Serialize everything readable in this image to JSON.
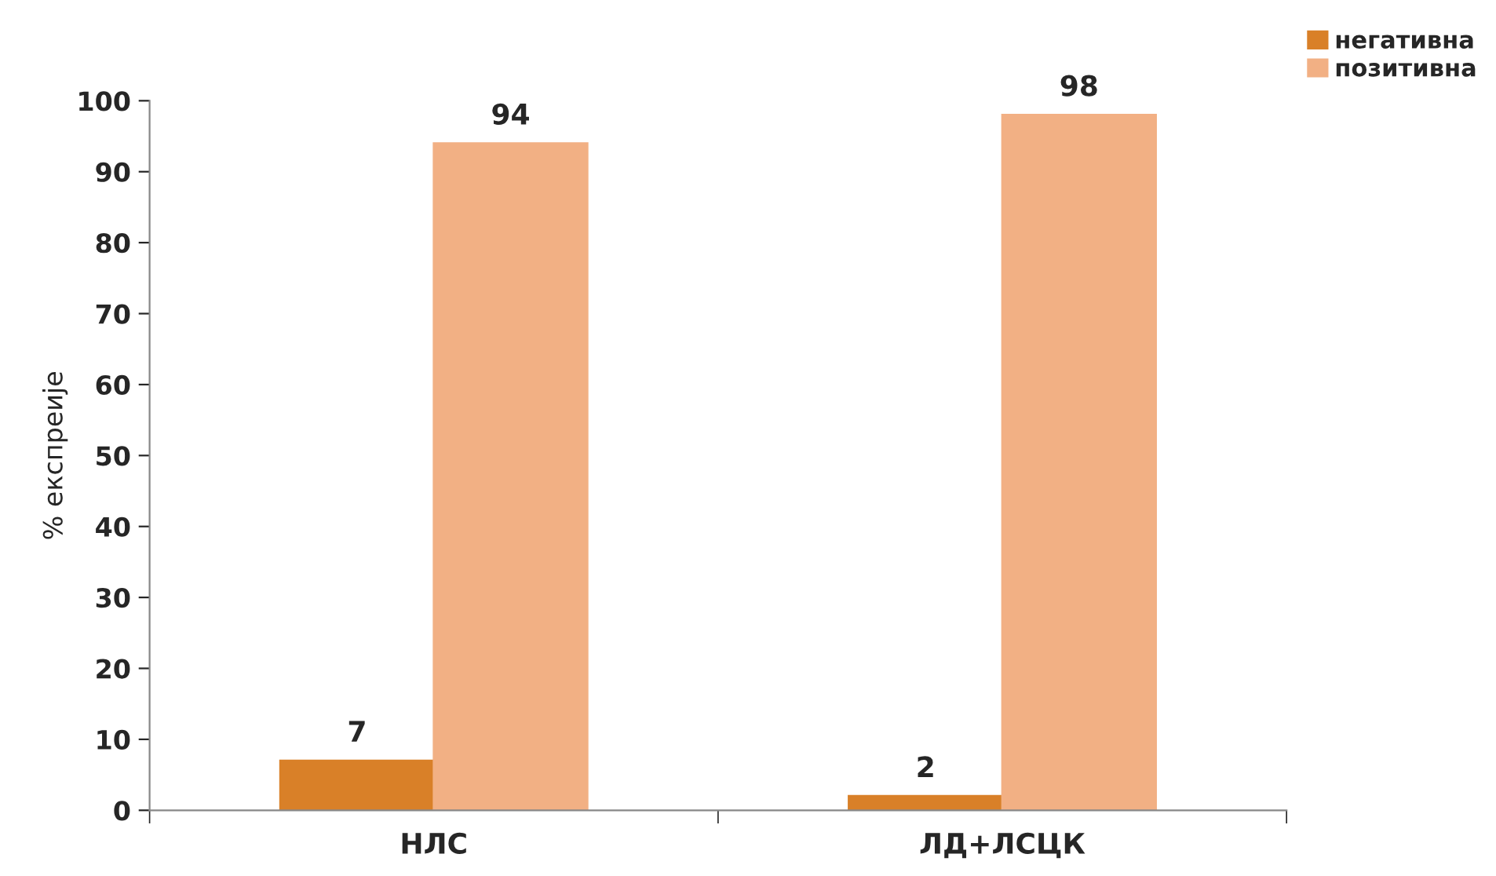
{
  "chart_data": {
    "type": "bar",
    "ylabel": "% експреије",
    "categories": [
      "НЛС",
      "ЛД+ЛСЦК"
    ],
    "series": [
      {
        "name": "негативна",
        "color": "#d98028",
        "values": [
          7,
          2
        ]
      },
      {
        "name": "позитивна",
        "color": "#f2b084",
        "values": [
          94,
          98
        ]
      }
    ],
    "ylim": [
      0,
      100
    ],
    "yticks": [
      0,
      10,
      20,
      30,
      40,
      50,
      60,
      70,
      80,
      90,
      100
    ],
    "data_labels": true,
    "grid": false,
    "legend": "top right"
  }
}
